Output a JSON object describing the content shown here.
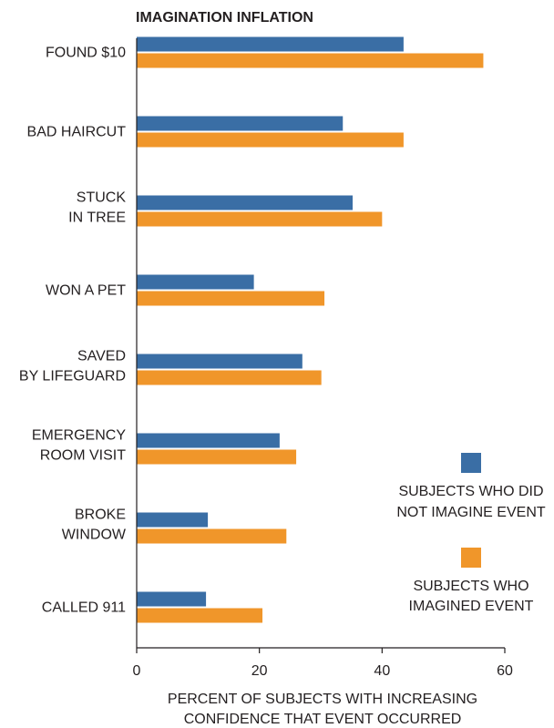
{
  "chart_data": {
    "type": "bar",
    "orientation": "horizontal",
    "title": "IMAGINATION INFLATION",
    "categories": [
      [
        "FOUND $10"
      ],
      [
        "BAD HAIRCUT"
      ],
      [
        "STUCK",
        "IN TREE"
      ],
      [
        "WON A PET"
      ],
      [
        "SAVED",
        "BY LIFEGUARD"
      ],
      [
        "EMERGENCY",
        "ROOM VISIT"
      ],
      [
        "BROKE",
        "WINDOW"
      ],
      [
        "CALLED 911"
      ]
    ],
    "series": [
      {
        "name": [
          "SUBJECTS WHO DID",
          "NOT IMAGINE EVENT"
        ],
        "color": "#3a6ea5",
        "values": [
          43.5,
          33.6,
          35.2,
          19.1,
          27.0,
          23.3,
          11.6,
          11.3
        ]
      },
      {
        "name": [
          "SUBJECTS WHO",
          "IMAGINED EVENT"
        ],
        "color": "#f0962a",
        "values": [
          56.5,
          43.5,
          40.0,
          30.6,
          30.1,
          26.0,
          24.4,
          20.5
        ]
      }
    ],
    "xlim": [
      0,
      60
    ],
    "xticks": [
      0,
      20,
      40,
      60
    ],
    "xlabel": [
      "PERCENT OF SUBJECTS WITH INCREASING",
      "CONFIDENCE THAT EVENT OCCURRED"
    ],
    "ylabel": "",
    "grid": false,
    "legend_position": "right"
  }
}
